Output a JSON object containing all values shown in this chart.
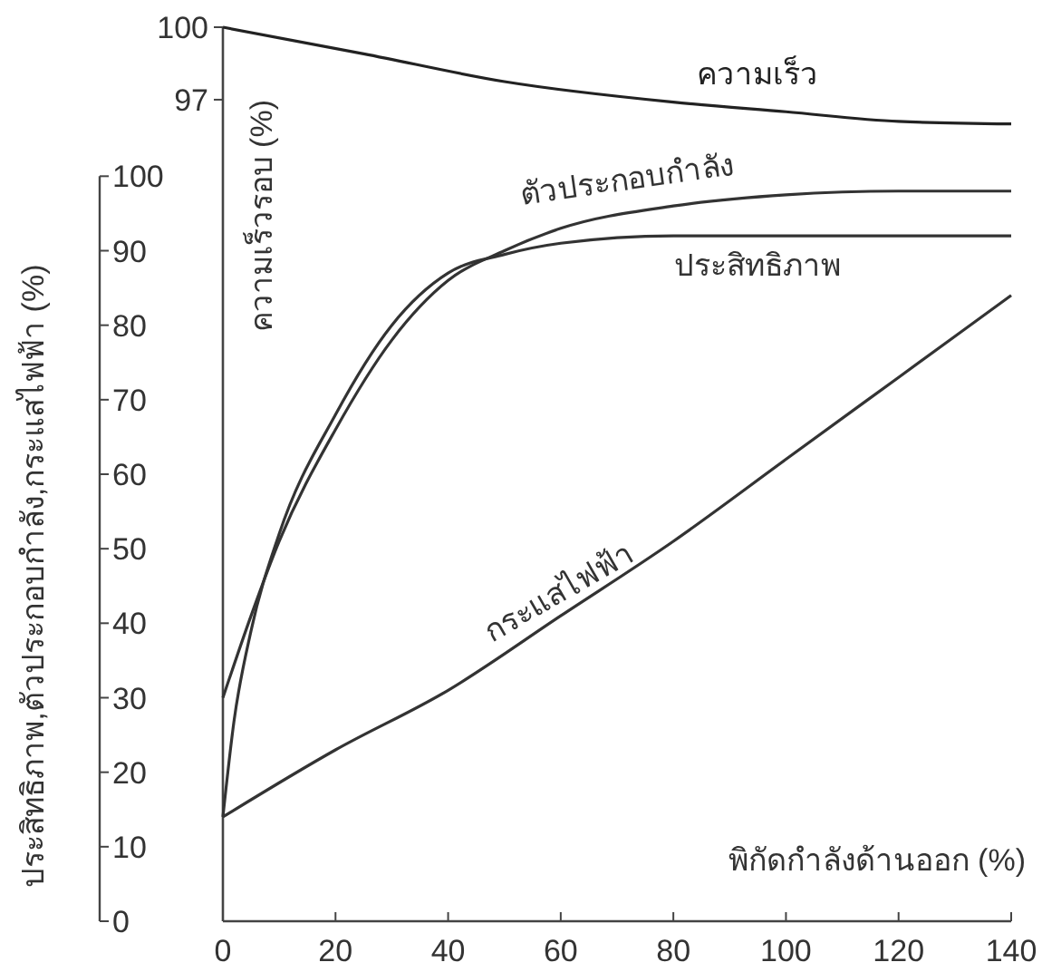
{
  "chart_data": {
    "type": "line",
    "xlabel": "พิกัดกำลังด้านออก (%)",
    "ylabel": "ประสิทธิภาพ,ตัวประกอบกำลัง,กระแสไฟฟ้า (%)",
    "y2label": "ความเร็วรอบ (%)",
    "xlim": [
      0,
      140
    ],
    "xticks": [
      0,
      20,
      40,
      60,
      80,
      100,
      120,
      140
    ],
    "ylim": [
      0,
      120
    ],
    "yticks": [
      0,
      10,
      20,
      30,
      40,
      50,
      60,
      70,
      80,
      90,
      100
    ],
    "y2lim": [
      63,
      100
    ],
    "y2ticks": [
      97,
      100
    ],
    "grid": false,
    "line_style": "solid",
    "series": [
      {
        "name": "ความเร็ว",
        "color": "#222222",
        "axis": "y2",
        "x": [
          0,
          25,
          50,
          80,
          100,
          120,
          140
        ],
        "values": [
          100,
          98.9,
          97.75,
          96.9,
          96.5,
          96.1,
          96
        ]
      },
      {
        "name": "ตัวประกอบกำลัง",
        "color": "#333333",
        "x": [
          0,
          5,
          10,
          20,
          30,
          40,
          50,
          60,
          80,
          100,
          120,
          140
        ],
        "values": [
          30,
          41,
          51,
          66,
          78,
          86,
          90,
          93,
          96,
          97.5,
          98,
          98
        ]
      },
      {
        "name": "ประสิทธิภาพ",
        "color": "#333333",
        "x": [
          0,
          2,
          5,
          10,
          20,
          30,
          40,
          50,
          60,
          80,
          100,
          140
        ],
        "values": [
          14,
          27,
          39,
          52,
          68,
          80,
          87,
          89.5,
          91,
          92,
          92,
          92
        ]
      },
      {
        "name": "กระแสไฟฟ้า",
        "color": "#333333",
        "x": [
          0,
          20,
          40,
          60,
          80,
          100,
          120,
          140
        ],
        "values": [
          14,
          23,
          31,
          41,
          51,
          62,
          73,
          84
        ]
      }
    ]
  }
}
